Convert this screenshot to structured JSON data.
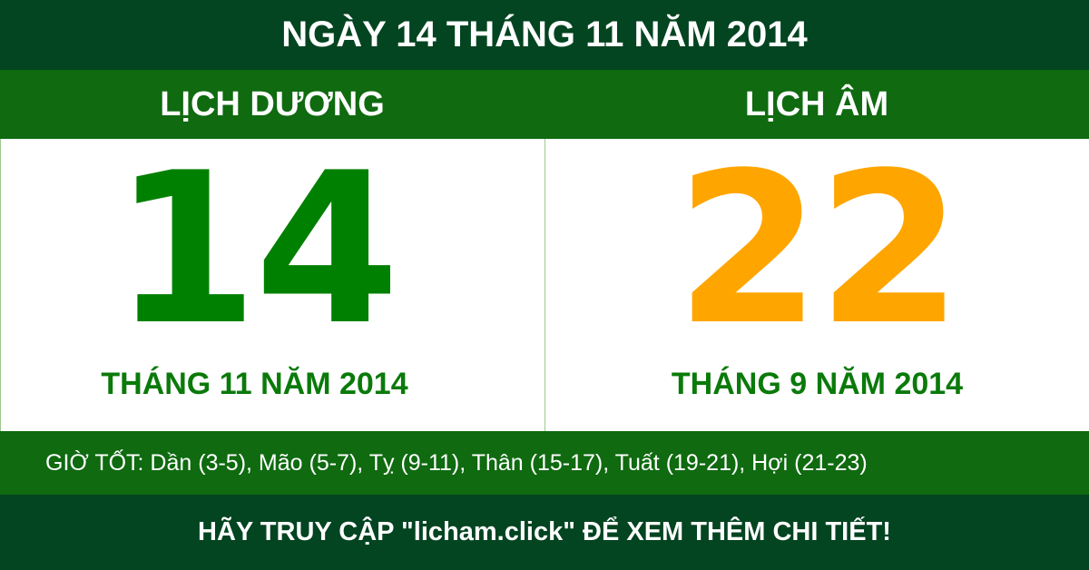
{
  "title": "NGÀY 14 THÁNG 11 NĂM 2014",
  "solar": {
    "label": "LỊCH DƯƠNG",
    "day": "14",
    "month_year": "THÁNG 11 NĂM 2014"
  },
  "lunar": {
    "label": "LỊCH ÂM",
    "day": "22",
    "month_year": "THÁNG 9 NĂM 2014"
  },
  "good_hours": "GIỜ TỐT: Dần (3-5), Mão (5-7), Tỵ (9-11), Thân (15-17), Tuất (19-21), Hợi (21-23)",
  "footer": "HÃY TRUY CẬP \"licham.click\" ĐỂ XEM THÊM CHI TIẾT!",
  "colors": {
    "dark": "#034421",
    "green": "#0f6a10",
    "solar_day": "#008000",
    "lunar_day": "#ffa500"
  }
}
